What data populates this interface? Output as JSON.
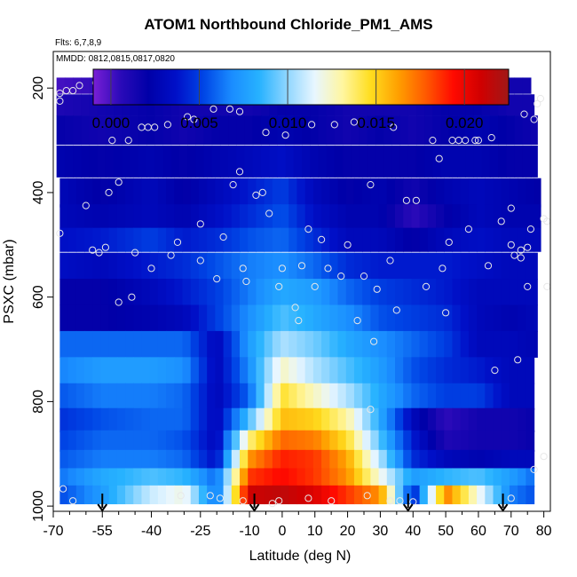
{
  "chart_data": {
    "type": "heatmap",
    "title": "ATOM1 Northbound Chloride_PM1_AMS",
    "flights_label": "Flts: 6,7,8,9",
    "dates_label": "MMDD: 0812,0815,0817,0820",
    "xlabel": "Latitude (deg N)",
    "ylabel": "PSXC (mbar)",
    "xlim": [
      -70,
      82
    ],
    "ylim": [
      1010,
      130
    ],
    "x_ticks": [
      -70,
      -55,
      -40,
      -25,
      -10,
      0,
      10,
      20,
      30,
      40,
      50,
      60,
      70,
      80
    ],
    "x_tick_labels": [
      "-70",
      "-55",
      "-40",
      "-25",
      "-10",
      "0",
      "10",
      "20",
      "30",
      "40",
      "50",
      "60",
      "70",
      "80"
    ],
    "x_minor_ticks": [
      -65,
      -60,
      -50,
      -45,
      -35,
      -30,
      -20,
      -15,
      -5,
      5,
      15,
      25,
      35,
      45,
      55,
      65,
      75
    ],
    "y_ticks": [
      200,
      400,
      600,
      800,
      1000
    ],
    "y_tick_labels": [
      "200",
      "400",
      "600",
      "800",
      "1000"
    ],
    "colorbar": {
      "min": -0.001,
      "max": 0.0225,
      "ticks": [
        0.0,
        0.005,
        0.01,
        0.015,
        0.02
      ],
      "tick_labels": [
        "0.000",
        "0.005",
        "0.010",
        "0.015",
        "0.020"
      ],
      "colors": [
        "#7a1fd6",
        "#2a0ab8",
        "#0000a8",
        "#0010c8",
        "#0046e6",
        "#1a8cff",
        "#27b2ff",
        "#8fd6ff",
        "#e8f6ff",
        "#fff6a0",
        "#ffde20",
        "#ffa000",
        "#ff5a00",
        "#ff0a00",
        "#d00000",
        "#a01818"
      ]
    },
    "heatmap_rows": [
      {
        "p": 195,
        "dp": 30,
        "x0": -69,
        "x1": 76,
        "lats": [
          -70,
          -55,
          -40,
          -30,
          -20,
          -10,
          0,
          10,
          20,
          30,
          40,
          50,
          60,
          70,
          80
        ],
        "vals": [
          0.0,
          0.0005,
          0.001,
          0.0015,
          0.0015,
          0.0015,
          0.0015,
          0.0015,
          0.0015,
          0.0015,
          0.0015,
          0.0015,
          0.0015,
          0.0015,
          0.0015
        ]
      },
      {
        "p": 232,
        "dp": 40,
        "x0": -69,
        "x1": 77,
        "lats": [
          -70,
          -55,
          -40,
          -30,
          -20,
          -10,
          0,
          10,
          20,
          30,
          40,
          50,
          60,
          70,
          80
        ],
        "vals": [
          0.001,
          0.0015,
          0.002,
          0.0015,
          0.0015,
          0.0015,
          0.002,
          0.002,
          0.0015,
          0.0015,
          0.0015,
          0.002,
          0.002,
          0.0015,
          0.0015
        ]
      },
      {
        "p": 280,
        "dp": 55,
        "x0": -69,
        "x1": 78,
        "lats": [
          -70,
          -55,
          -40,
          -30,
          -20,
          -10,
          0,
          10,
          20,
          30,
          40,
          50,
          60,
          70,
          80
        ],
        "vals": [
          0.002,
          0.0015,
          0.002,
          0.0015,
          0.002,
          0.002,
          0.0025,
          0.002,
          0.0015,
          0.002,
          0.0015,
          0.002,
          0.0025,
          0.002,
          0.0015
        ]
      },
      {
        "p": 340,
        "dp": 60,
        "x0": -69,
        "x1": 78,
        "lats": [
          -70,
          -55,
          -40,
          -30,
          -20,
          -10,
          0,
          10,
          20,
          30,
          40,
          50,
          60,
          70,
          80
        ],
        "vals": [
          0.0025,
          0.002,
          0.0025,
          0.002,
          0.0025,
          0.003,
          0.0035,
          0.0025,
          0.002,
          0.002,
          0.002,
          0.0025,
          0.0025,
          0.002,
          0.002
        ]
      },
      {
        "p": 400,
        "dp": 55,
        "x0": -68,
        "x1": 79,
        "lats": [
          -70,
          -55,
          -40,
          -30,
          -20,
          -10,
          0,
          10,
          20,
          30,
          40,
          50,
          60,
          70,
          80
        ],
        "vals": [
          0.003,
          0.002,
          0.003,
          0.002,
          0.003,
          0.004,
          0.005,
          0.003,
          0.002,
          0.0025,
          0.0015,
          0.0025,
          0.003,
          0.0025,
          0.002
        ]
      },
      {
        "p": 445,
        "dp": 45,
        "x0": -68,
        "x1": 79,
        "lats": [
          -70,
          -55,
          -40,
          -30,
          -20,
          -10,
          0,
          10,
          20,
          30,
          40,
          50,
          60,
          70,
          80
        ],
        "vals": [
          0.003,
          0.0025,
          0.003,
          0.0025,
          0.0035,
          0.0045,
          0.0055,
          0.0035,
          0.0025,
          0.0025,
          0.0005,
          0.002,
          0.003,
          0.0025,
          0.0025
        ]
      },
      {
        "p": 490,
        "dp": 45,
        "x0": -68,
        "x1": 79,
        "lats": [
          -70,
          -55,
          -40,
          -30,
          -20,
          -10,
          0,
          10,
          20,
          30,
          40,
          50,
          60,
          70,
          80
        ],
        "vals": [
          0.0035,
          0.004,
          0.005,
          0.004,
          0.0045,
          0.0055,
          0.006,
          0.0045,
          0.003,
          0.003,
          0.002,
          0.003,
          0.0035,
          0.003,
          0.003
        ]
      },
      {
        "p": 540,
        "dp": 50,
        "x0": -68,
        "x1": 78,
        "lats": [
          -70,
          -55,
          -40,
          -30,
          -20,
          -10,
          0,
          10,
          20,
          30,
          40,
          50,
          60,
          70,
          80
        ],
        "vals": [
          0.0035,
          0.003,
          0.004,
          0.0045,
          0.0055,
          0.0065,
          0.007,
          0.006,
          0.0045,
          0.004,
          0.004,
          0.004,
          0.0035,
          0.003,
          0.003
        ]
      },
      {
        "p": 590,
        "dp": 50,
        "x0": -68,
        "x1": 78,
        "lats": [
          -70,
          -55,
          -40,
          -30,
          -20,
          -10,
          0,
          10,
          20,
          30,
          40,
          50,
          60,
          70,
          80
        ],
        "vals": [
          0.002,
          0.002,
          0.003,
          0.004,
          0.005,
          0.0065,
          0.008,
          0.0075,
          0.006,
          0.005,
          0.0045,
          0.004,
          0.003,
          0.003,
          0.003
        ]
      },
      {
        "p": 640,
        "dp": 50,
        "x0": -68,
        "x1": 78,
        "lats": [
          -70,
          -55,
          -40,
          -30,
          -20,
          -10,
          0,
          10,
          20,
          30,
          40,
          50,
          60,
          70,
          80
        ],
        "vals": [
          0.002,
          0.002,
          0.0025,
          0.003,
          0.005,
          0.007,
          0.009,
          0.008,
          0.007,
          0.0055,
          0.005,
          0.0045,
          0.003,
          0.0025,
          0.003
        ]
      },
      {
        "p": 690,
        "dp": 50,
        "x0": -68,
        "x1": 78,
        "lats": [
          -70,
          -55,
          -40,
          -30,
          -20,
          -10,
          0,
          10,
          20,
          30,
          40,
          50,
          60,
          70,
          80
        ],
        "vals": [
          0.006,
          0.006,
          0.006,
          0.006,
          0.003,
          0.0075,
          0.0105,
          0.0095,
          0.008,
          0.007,
          0.006,
          0.005,
          0.003,
          0.003,
          0.0025
        ]
      },
      {
        "p": 740,
        "dp": 50,
        "x0": -68,
        "x1": 77,
        "lats": [
          -70,
          -55,
          -40,
          -30,
          -20,
          -10,
          0,
          10,
          20,
          30,
          40,
          50,
          60,
          70,
          80
        ],
        "vals": [
          0.0065,
          0.0075,
          0.0075,
          0.007,
          0.003,
          0.007,
          0.0125,
          0.0105,
          0.009,
          0.0075,
          0.0055,
          0.0045,
          0.004,
          0.003,
          0.003
        ]
      },
      {
        "p": 790,
        "dp": 50,
        "x0": -68,
        "x1": 77,
        "lats": [
          -70,
          -55,
          -40,
          -30,
          -20,
          -10,
          0,
          10,
          20,
          30,
          40,
          50,
          60,
          70,
          80
        ],
        "vals": [
          0.0055,
          0.0065,
          0.0065,
          0.006,
          0.003,
          0.006,
          0.0145,
          0.0125,
          0.0105,
          0.008,
          0.006,
          0.005,
          0.005,
          0.003,
          0.003
        ]
      },
      {
        "p": 835,
        "dp": 45,
        "x0": -68,
        "x1": 77,
        "lats": [
          -70,
          -55,
          -40,
          -30,
          -20,
          -10,
          0,
          10,
          20,
          30,
          40,
          50,
          60,
          70,
          80
        ],
        "vals": [
          0.0045,
          0.0055,
          0.006,
          0.006,
          0.003,
          0.009,
          0.0155,
          0.015,
          0.013,
          0.008,
          0.003,
          0.0005,
          0.0015,
          0.0015,
          0.002
        ]
      },
      {
        "p": 875,
        "dp": 40,
        "x0": -68,
        "x1": 77,
        "lats": [
          -70,
          -55,
          -40,
          -30,
          -20,
          -10,
          0,
          10,
          20,
          30,
          40,
          50,
          60,
          70,
          80
        ],
        "vals": [
          0.005,
          0.006,
          0.006,
          0.0055,
          0.003,
          0.0135,
          0.0175,
          0.017,
          0.0145,
          0.009,
          0.004,
          0.001,
          0.0015,
          0.0015,
          0.002
        ]
      },
      {
        "p": 910,
        "dp": 35,
        "x0": -68,
        "x1": 77,
        "lats": [
          -70,
          -55,
          -40,
          -30,
          -20,
          -10,
          0,
          10,
          20,
          30,
          40,
          50,
          60,
          70,
          80
        ],
        "vals": [
          0.0055,
          0.0065,
          0.0065,
          0.006,
          0.0035,
          0.0165,
          0.019,
          0.0185,
          0.016,
          0.0105,
          0.0045,
          0.003,
          0.0025,
          0.003,
          0.003
        ]
      },
      {
        "p": 945,
        "dp": 35,
        "x0": -68,
        "x1": 77,
        "lats": [
          -70,
          -55,
          -40,
          -30,
          -20,
          -10,
          0,
          10,
          20,
          30,
          40,
          50,
          60,
          70,
          80
        ],
        "vals": [
          0.006,
          0.008,
          0.009,
          0.0085,
          0.006,
          0.0185,
          0.0195,
          0.0185,
          0.0165,
          0.012,
          0.0075,
          0.0085,
          0.009,
          0.0075,
          0.0055
        ]
      },
      {
        "p": 978,
        "dp": 35,
        "x0": -68,
        "x1": 77,
        "lats": [
          -70,
          -55,
          -40,
          -30,
          -20,
          -10,
          0,
          10,
          20,
          30,
          40,
          50,
          60,
          70,
          80
        ],
        "vals": [
          0.005,
          0.0075,
          0.011,
          0.012,
          0.006,
          0.021,
          0.0215,
          0.0205,
          0.0185,
          0.0165,
          0.004,
          0.017,
          0.012,
          0.0065,
          0.005
        ]
      }
    ],
    "sample_points": [
      [
        -68,
        210
      ],
      [
        -66,
        205
      ],
      [
        -64,
        205
      ],
      [
        -62,
        195
      ],
      [
        -57,
        190
      ],
      [
        -68,
        225
      ],
      [
        -68,
        478
      ],
      [
        -60,
        425
      ],
      [
        -58,
        510
      ],
      [
        -56,
        515
      ],
      [
        -54,
        505
      ],
      [
        -53,
        400
      ],
      [
        -52,
        300
      ],
      [
        -50,
        380
      ],
      [
        -50,
        610
      ],
      [
        -47,
        300
      ],
      [
        -46,
        600
      ],
      [
        -45,
        515
      ],
      [
        -43,
        275
      ],
      [
        -41,
        275
      ],
      [
        -40,
        545
      ],
      [
        -39,
        275
      ],
      [
        -35,
        270
      ],
      [
        -34,
        520
      ],
      [
        -32,
        495
      ],
      [
        -29,
        255
      ],
      [
        -27,
        260
      ],
      [
        -25,
        460
      ],
      [
        -25,
        530
      ],
      [
        -21,
        240
      ],
      [
        -20,
        565
      ],
      [
        -18,
        485
      ],
      [
        -16,
        240
      ],
      [
        -15,
        385
      ],
      [
        -13,
        245
      ],
      [
        -13,
        360
      ],
      [
        -12,
        545
      ],
      [
        -11,
        570
      ],
      [
        -8,
        215
      ],
      [
        -8,
        405
      ],
      [
        -6,
        400
      ],
      [
        -5,
        285
      ],
      [
        -4,
        440
      ],
      [
        -1,
        580
      ],
      [
        0,
        545
      ],
      [
        1,
        290
      ],
      [
        4,
        620
      ],
      [
        5,
        645
      ],
      [
        6,
        540
      ],
      [
        8,
        470
      ],
      [
        9,
        270
      ],
      [
        10,
        580
      ],
      [
        12,
        490
      ],
      [
        14,
        545
      ],
      [
        16,
        270
      ],
      [
        18,
        560
      ],
      [
        20,
        500
      ],
      [
        22,
        265
      ],
      [
        23,
        645
      ],
      [
        25,
        560
      ],
      [
        27,
        385
      ],
      [
        28,
        685
      ],
      [
        27,
        815
      ],
      [
        29,
        585
      ],
      [
        31,
        225
      ],
      [
        33,
        530
      ],
      [
        35,
        625
      ],
      [
        34,
        275
      ],
      [
        38,
        415
      ],
      [
        40,
        190
      ],
      [
        41,
        415
      ],
      [
        44,
        580
      ],
      [
        46,
        300
      ],
      [
        48,
        335
      ],
      [
        49,
        545
      ],
      [
        50,
        630
      ],
      [
        51,
        495
      ],
      [
        52,
        300
      ],
      [
        54,
        300
      ],
      [
        56,
        300
      ],
      [
        57,
        470
      ],
      [
        59,
        300
      ],
      [
        60,
        300
      ],
      [
        63,
        540
      ],
      [
        64,
        295
      ],
      [
        65,
        740
      ],
      [
        67,
        455
      ],
      [
        70,
        430
      ],
      [
        70,
        500
      ],
      [
        71,
        520
      ],
      [
        72,
        720
      ],
      [
        73,
        510
      ],
      [
        73,
        525
      ],
      [
        74,
        250
      ],
      [
        75,
        580
      ],
      [
        75,
        505
      ],
      [
        76,
        470
      ],
      [
        77,
        260
      ],
      [
        78,
        230
      ],
      [
        79,
        220
      ],
      [
        80,
        450
      ],
      [
        81,
        455
      ],
      [
        81,
        580
      ],
      [
        80,
        905
      ],
      [
        -1,
        990
      ],
      [
        -3,
        995
      ],
      [
        -12,
        990
      ],
      [
        -19,
        985
      ],
      [
        -22,
        980
      ],
      [
        15,
        990
      ],
      [
        40,
        992
      ],
      [
        33,
        990
      ],
      [
        36,
        990
      ],
      [
        8,
        985
      ],
      [
        26,
        980
      ],
      [
        -67,
        967
      ],
      [
        -64,
        990
      ],
      [
        -31,
        980
      ],
      [
        70,
        985
      ],
      [
        77,
        930
      ]
    ],
    "arrow_markers": [
      -55,
      -8.5,
      38.5,
      67.5
    ]
  }
}
